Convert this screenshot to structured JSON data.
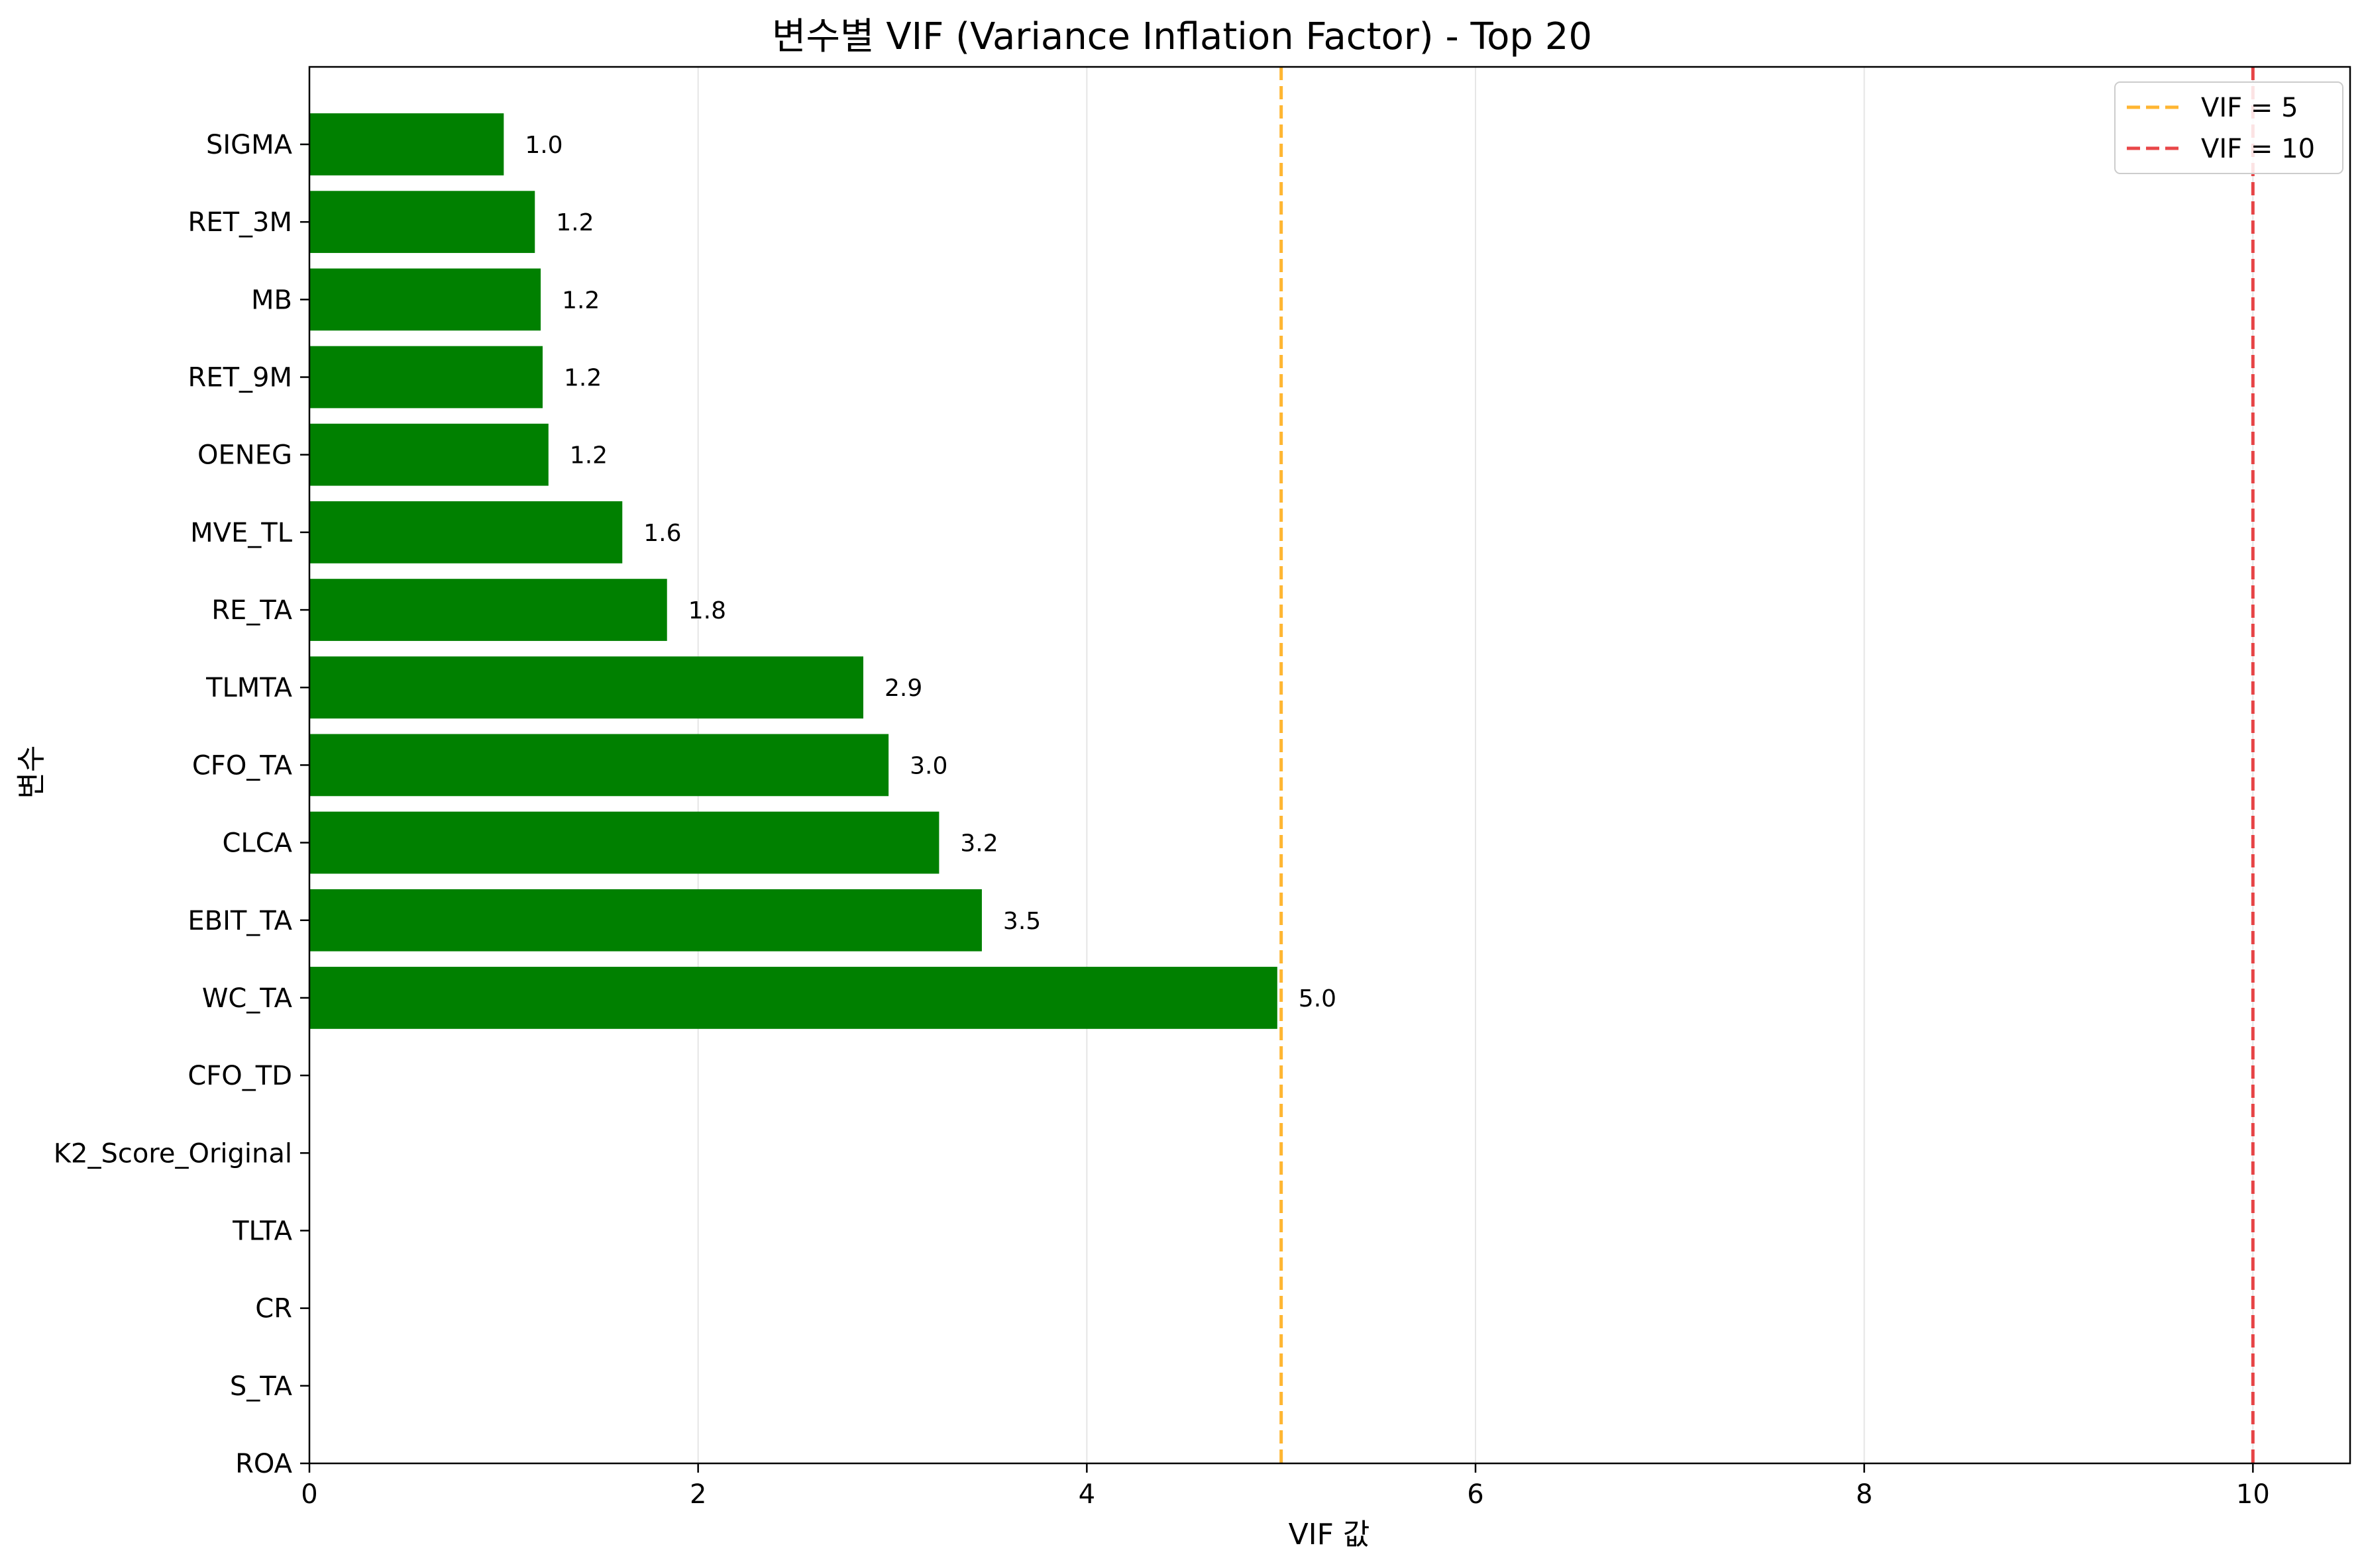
{
  "chart_data": {
    "type": "bar",
    "orientation": "horizontal",
    "title": "변수별 VIF (Variance Inflation Factor) - Top 20",
    "xlabel": "VIF 값",
    "ylabel": "변수",
    "xlim": [
      0,
      10.5
    ],
    "xticks": [
      0,
      2,
      4,
      6,
      8,
      10
    ],
    "grid": "vertical",
    "legend_position": "top-right",
    "bar_color": "#008000",
    "categories": [
      "SIGMA",
      "RET_3M",
      "MB",
      "RET_9M",
      "OENEG",
      "MVE_TL",
      "RE_TA",
      "TLMTA",
      "CFO_TA",
      "CLCA",
      "EBIT_TA",
      "WC_TA",
      "CFO_TD",
      "K2_Score_Original",
      "TLTA",
      "CR",
      "S_TA",
      "ROA"
    ],
    "values": [
      1.0,
      1.16,
      1.19,
      1.2,
      1.23,
      1.61,
      1.84,
      2.85,
      2.98,
      3.24,
      3.46,
      4.98,
      null,
      null,
      null,
      null,
      null,
      null
    ],
    "value_labels": [
      "1.0",
      "1.2",
      "1.2",
      "1.2",
      "1.2",
      "1.6",
      "1.8",
      "2.9",
      "3.0",
      "3.2",
      "3.5",
      "5.0",
      "",
      "",
      "",
      "",
      "",
      ""
    ],
    "reference_lines": [
      {
        "name": "VIF = 5",
        "value": 5,
        "color": "#FFA500",
        "style": "dashed"
      },
      {
        "name": "VIF = 10",
        "value": 10,
        "color": "#E41A1C",
        "style": "dashed"
      }
    ]
  }
}
